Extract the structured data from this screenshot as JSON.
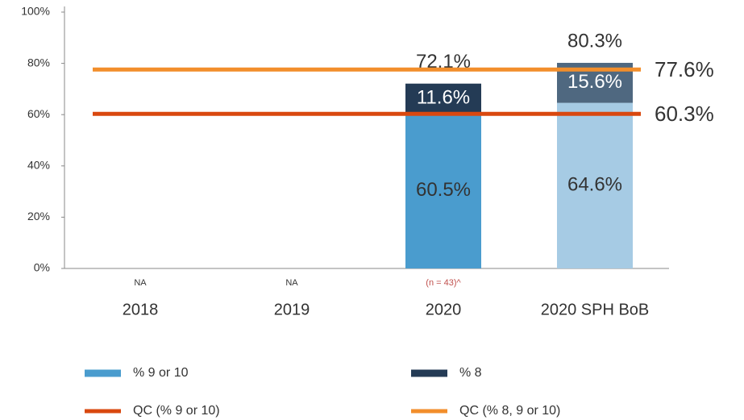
{
  "chart_data": {
    "type": "bar",
    "stacked": true,
    "categories": [
      "2018",
      "2019",
      "2020",
      "2020 SPH BoB"
    ],
    "category_notes": [
      "NA",
      "NA",
      "(n = 43)^",
      null
    ],
    "category_note_colors": [
      "#333333",
      "#333333",
      "#c0504d",
      null
    ],
    "series": [
      {
        "name": "% 9 or 10",
        "color": "#4a9cce",
        "bar_colors": [
          null,
          null,
          "#4a9cce",
          "#a6cbe4"
        ],
        "label_color": "#333333",
        "values": [
          null,
          null,
          60.5,
          64.6
        ],
        "value_labels": [
          null,
          null,
          "60.5%",
          "64.6%"
        ]
      },
      {
        "name": "% 8",
        "color": "#243b55",
        "bar_colors": [
          null,
          null,
          "#243b55",
          "#4f6880"
        ],
        "label_color": "#ffffff",
        "values": [
          null,
          null,
          11.6,
          15.6
        ],
        "value_labels": [
          null,
          null,
          "11.6%",
          "15.6%"
        ]
      }
    ],
    "total_labels": [
      null,
      null,
      "72.1%",
      "80.3%"
    ],
    "lines": [
      {
        "name": "QC  (% 9 or 10)",
        "color": "#d9480f",
        "value": 60.3,
        "value_label": "60.3%"
      },
      {
        "name": "QC  (% 8, 9 or 10)",
        "color": "#f28e2b",
        "value": 77.6,
        "value_label": "77.6%"
      }
    ],
    "ylim": [
      0,
      100
    ],
    "yticks": [
      {
        "value": 0,
        "label": "0%"
      },
      {
        "value": 20,
        "label": "20%"
      },
      {
        "value": 40,
        "label": "40%"
      },
      {
        "value": 60,
        "label": "60%"
      },
      {
        "value": 80,
        "label": "80%"
      },
      {
        "value": 100,
        "label": "100%"
      }
    ]
  }
}
